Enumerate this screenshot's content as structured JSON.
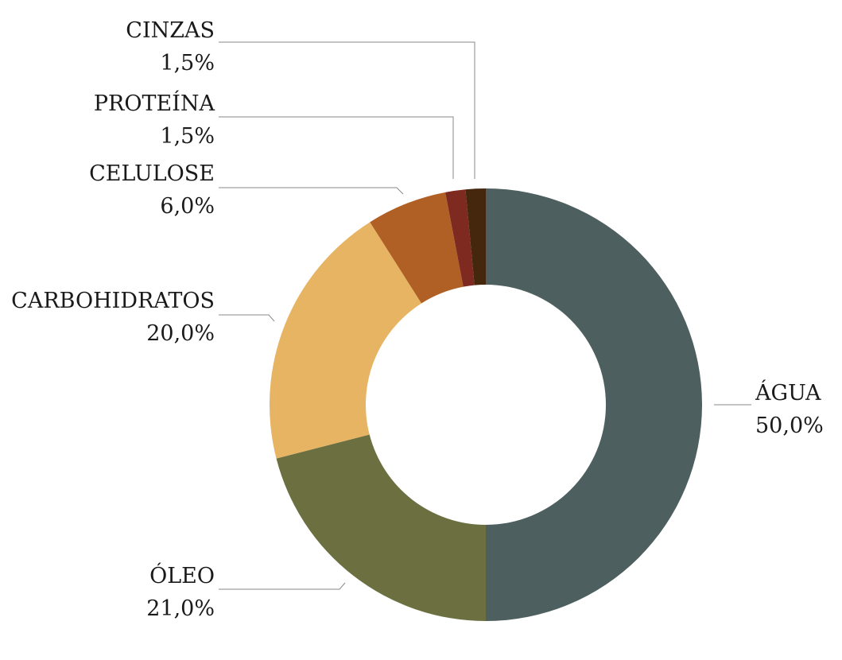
{
  "chart_data": {
    "type": "pie",
    "variant": "donut",
    "title": "",
    "legend": "none",
    "slices": [
      {
        "label": "ÁGUA",
        "value": 50.0,
        "value_label": "50,0%",
        "color": "#4e5f60"
      },
      {
        "label": "ÓLEO",
        "value": 21.0,
        "value_label": "21,0%",
        "color": "#6c7041"
      },
      {
        "label": "CARBOHIDRATOS",
        "value": 20.0,
        "value_label": "20,0%",
        "color": "#e6b462"
      },
      {
        "label": "CELULOSE",
        "value": 6.0,
        "value_label": "6,0%",
        "color": "#b06024"
      },
      {
        "label": "PROTEÍNA",
        "value": 1.5,
        "value_label": "1,5%",
        "color": "#7f2a20"
      },
      {
        "label": "CINZAS",
        "value": 1.5,
        "value_label": "1,5%",
        "color": "#45270d"
      }
    ]
  }
}
